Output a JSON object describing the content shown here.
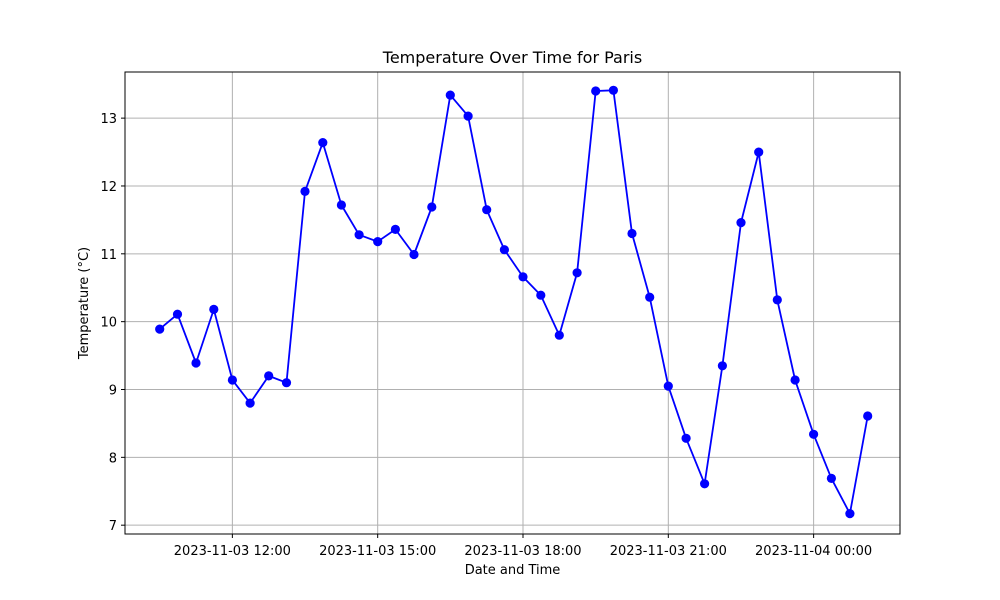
{
  "chart_data": {
    "type": "line",
    "title": "Temperature Over Time for Paris",
    "xlabel": "Date and Time",
    "ylabel": "Temperature (°C)",
    "x_ticks": [
      {
        "value": "2023-11-03 12:00",
        "label": "2023-11-03 12:00"
      },
      {
        "value": "2023-11-03 15:00",
        "label": "2023-11-03 15:00"
      },
      {
        "value": "2023-11-03 18:00",
        "label": "2023-11-03 18:00"
      },
      {
        "value": "2023-11-03 21:00",
        "label": "2023-11-03 21:00"
      },
      {
        "value": "2023-11-04 00:00",
        "label": "2023-11-04 00:00"
      }
    ],
    "y_ticks": [
      7,
      8,
      9,
      10,
      11,
      12,
      13
    ],
    "xlim": [
      "2023-11-03 09:47",
      "2023-11-04 01:47"
    ],
    "ylim": [
      6.87,
      13.68
    ],
    "grid": true,
    "series": [
      {
        "color": "#0000ff",
        "marker": "circle",
        "x": [
          "2023-11-03 10:30",
          "2023-11-03 10:52",
          "2023-11-03 11:15",
          "2023-11-03 11:37",
          "2023-11-03 12:00",
          "2023-11-03 12:22",
          "2023-11-03 12:45",
          "2023-11-03 13:07",
          "2023-11-03 13:30",
          "2023-11-03 13:52",
          "2023-11-03 14:15",
          "2023-11-03 14:37",
          "2023-11-03 15:00",
          "2023-11-03 15:22",
          "2023-11-03 15:45",
          "2023-11-03 16:07",
          "2023-11-03 16:30",
          "2023-11-03 16:52",
          "2023-11-03 17:15",
          "2023-11-03 17:37",
          "2023-11-03 18:00",
          "2023-11-03 18:22",
          "2023-11-03 18:45",
          "2023-11-03 19:07",
          "2023-11-03 19:30",
          "2023-11-03 19:52",
          "2023-11-03 20:15",
          "2023-11-03 20:37",
          "2023-11-03 21:00",
          "2023-11-03 21:22",
          "2023-11-03 21:45",
          "2023-11-03 22:07",
          "2023-11-03 22:30",
          "2023-11-03 22:52",
          "2023-11-03 23:15",
          "2023-11-03 23:37",
          "2023-11-04 00:00",
          "2023-11-04 00:22",
          "2023-11-04 00:45",
          "2023-11-04 01:07"
        ],
        "y": [
          9.89,
          10.11,
          9.39,
          10.18,
          9.14,
          8.8,
          9.2,
          9.1,
          11.92,
          12.64,
          11.72,
          11.28,
          11.18,
          11.36,
          10.99,
          11.69,
          13.34,
          13.03,
          11.65,
          11.06,
          10.66,
          10.39,
          9.8,
          10.72,
          13.4,
          13.41,
          11.3,
          10.36,
          9.05,
          8.28,
          7.61,
          9.35,
          11.46,
          12.5,
          10.32,
          9.14,
          8.34,
          7.69,
          7.17,
          8.61
        ]
      }
    ]
  }
}
